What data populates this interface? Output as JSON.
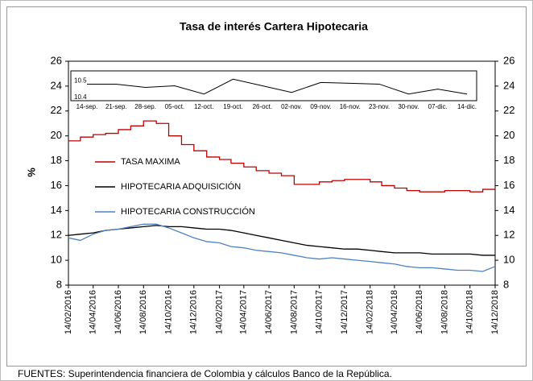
{
  "chart_data": [
    {
      "type": "line",
      "title": "Tasa de interés Cartera Hipotecaria",
      "ylabel": "%",
      "source": "FUENTES: Superintendencia financiera de Colombia y cálculos Banco de la República.",
      "x": [
        "14/02/2016",
        "14/03/2016",
        "14/04/2016",
        "14/05/2016",
        "14/06/2016",
        "14/07/2016",
        "14/08/2016",
        "14/09/2016",
        "14/10/2016",
        "14/11/2016",
        "14/12/2016",
        "14/01/2017",
        "14/02/2017",
        "14/03/2017",
        "14/04/2017",
        "14/05/2017",
        "14/06/2017",
        "14/07/2017",
        "14/08/2017",
        "14/09/2017",
        "14/10/2017",
        "14/11/2017",
        "14/12/2017",
        "14/01/2018",
        "14/02/2018",
        "14/03/2018",
        "14/04/2018",
        "14/05/2018",
        "14/06/2018",
        "14/07/2018",
        "14/08/2018",
        "14/09/2018",
        "14/10/2018",
        "14/11/2018",
        "14/12/2018"
      ],
      "xlim": [
        "14/02/2016",
        "14/12/2018"
      ],
      "xticks": [
        "14/02/2016",
        "14/04/2016",
        "14/06/2016",
        "14/08/2016",
        "14/10/2016",
        "14/12/2016",
        "14/02/2017",
        "14/04/2017",
        "14/06/2017",
        "14/08/2017",
        "14/10/2017",
        "14/12/2017",
        "14/02/2018",
        "14/04/2018",
        "14/06/2018",
        "14/08/2018",
        "14/10/2018",
        "14/12/2018"
      ],
      "ylim": [
        8,
        26
      ],
      "yticks": [
        8,
        10,
        12,
        14,
        16,
        18,
        20,
        22,
        24,
        26
      ],
      "y2lim": [
        8,
        26
      ],
      "y2ticks": [
        8,
        10,
        12,
        14,
        16,
        18,
        20,
        22,
        24,
        26
      ],
      "series": [
        {
          "name": "TASA MAXIMA",
          "color": "#c00000",
          "step": true,
          "values": [
            19.6,
            19.9,
            20.1,
            20.2,
            20.5,
            20.8,
            21.2,
            21.0,
            20.0,
            19.3,
            18.8,
            18.3,
            18.1,
            17.8,
            17.5,
            17.2,
            17.0,
            16.8,
            16.1,
            16.1,
            16.3,
            16.4,
            16.5,
            16.5,
            16.3,
            16.0,
            15.8,
            15.6,
            15.5,
            15.5,
            15.6,
            15.6,
            15.5,
            15.7,
            15.7
          ]
        },
        {
          "name": "HIPOTECARIA ADQUISICIÓN",
          "color": "#000000",
          "values": [
            12.0,
            12.1,
            12.2,
            12.4,
            12.5,
            12.6,
            12.7,
            12.8,
            12.7,
            12.7,
            12.6,
            12.5,
            12.5,
            12.4,
            12.2,
            12.0,
            11.8,
            11.6,
            11.4,
            11.2,
            11.1,
            11.0,
            10.9,
            10.9,
            10.8,
            10.7,
            10.6,
            10.6,
            10.6,
            10.5,
            10.5,
            10.5,
            10.5,
            10.4,
            10.4
          ]
        },
        {
          "name": "HIPOTECARIA CONSTRUCCIÓN",
          "color": "#4f81bd",
          "values": [
            11.8,
            11.6,
            12.1,
            12.4,
            12.5,
            12.7,
            12.9,
            12.9,
            12.6,
            12.2,
            11.8,
            11.5,
            11.4,
            11.1,
            11.0,
            10.8,
            10.7,
            10.6,
            10.4,
            10.2,
            10.1,
            10.2,
            10.1,
            10.0,
            9.9,
            9.8,
            9.7,
            9.5,
            9.4,
            9.4,
            9.3,
            9.2,
            9.2,
            9.1,
            9.5
          ]
        }
      ]
    },
    {
      "type": "line",
      "categories": [
        "14-sep.",
        "21-sep.",
        "28-sep.",
        "05-oct.",
        "12-oct.",
        "19-oct.",
        "26-oct.",
        "02-nov.",
        "09-nov.",
        "16-nov.",
        "23-nov.",
        "30-nov.",
        "07-dic.",
        "14-dic."
      ],
      "ylim": [
        10.38,
        10.56
      ],
      "yticks": [
        10.4,
        10.5
      ],
      "series": [
        {
          "color": "#000000",
          "values": [
            10.48,
            10.48,
            10.46,
            10.47,
            10.42,
            10.51,
            10.47,
            10.43,
            10.49,
            10.485,
            10.48,
            10.42,
            10.45,
            10.42
          ]
        }
      ]
    }
  ]
}
